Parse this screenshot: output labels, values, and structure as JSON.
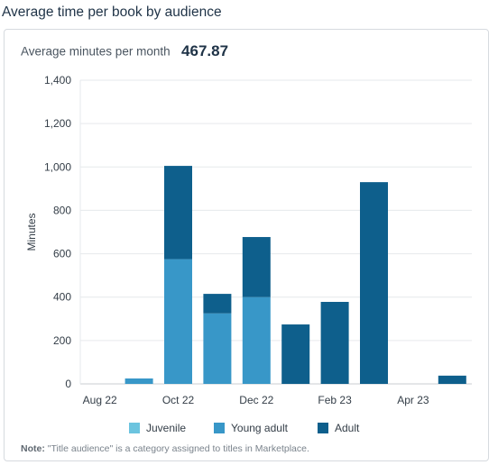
{
  "page": {
    "title": "Average time per book by audience"
  },
  "metric": {
    "label": "Average minutes per month",
    "value": "467.87"
  },
  "note": {
    "prefix": "Note:",
    "text": "\"Title audience\" is a category assigned to titles in Marketplace."
  },
  "chart_data": {
    "type": "bar",
    "stacked": true,
    "categories": [
      "Aug 22",
      "Sep 22",
      "Oct 22",
      "Nov 22",
      "Dec 22",
      "Jan 23",
      "Feb 23",
      "Mar 23",
      "Apr 23",
      "May 23"
    ],
    "x_tick_labels": [
      "Aug 22",
      "Oct 22",
      "Dec 22",
      "Feb 23",
      "Apr 23"
    ],
    "series": [
      {
        "name": "Juvenile",
        "color": "#6cc4df",
        "values": [
          0,
          0,
          0,
          0,
          0,
          0,
          0,
          0,
          0,
          0
        ]
      },
      {
        "name": "Young adult",
        "color": "#3897c8",
        "values": [
          0,
          25,
          575,
          325,
          400,
          0,
          0,
          0,
          0,
          0
        ]
      },
      {
        "name": "Adult",
        "color": "#0e5f8c",
        "values": [
          0,
          0,
          430,
          90,
          277,
          274,
          378,
          930,
          0,
          38
        ]
      }
    ],
    "ylabel": "Minutes",
    "xlabel": "",
    "ylim": [
      0,
      1400
    ],
    "yticks": [
      0,
      200,
      400,
      600,
      800,
      1000,
      1200,
      1400
    ],
    "ytick_labels": [
      "0",
      "200",
      "400",
      "600",
      "800",
      "1,000",
      "1,200",
      "1,400"
    ],
    "grid": true,
    "legend_position": "bottom"
  }
}
